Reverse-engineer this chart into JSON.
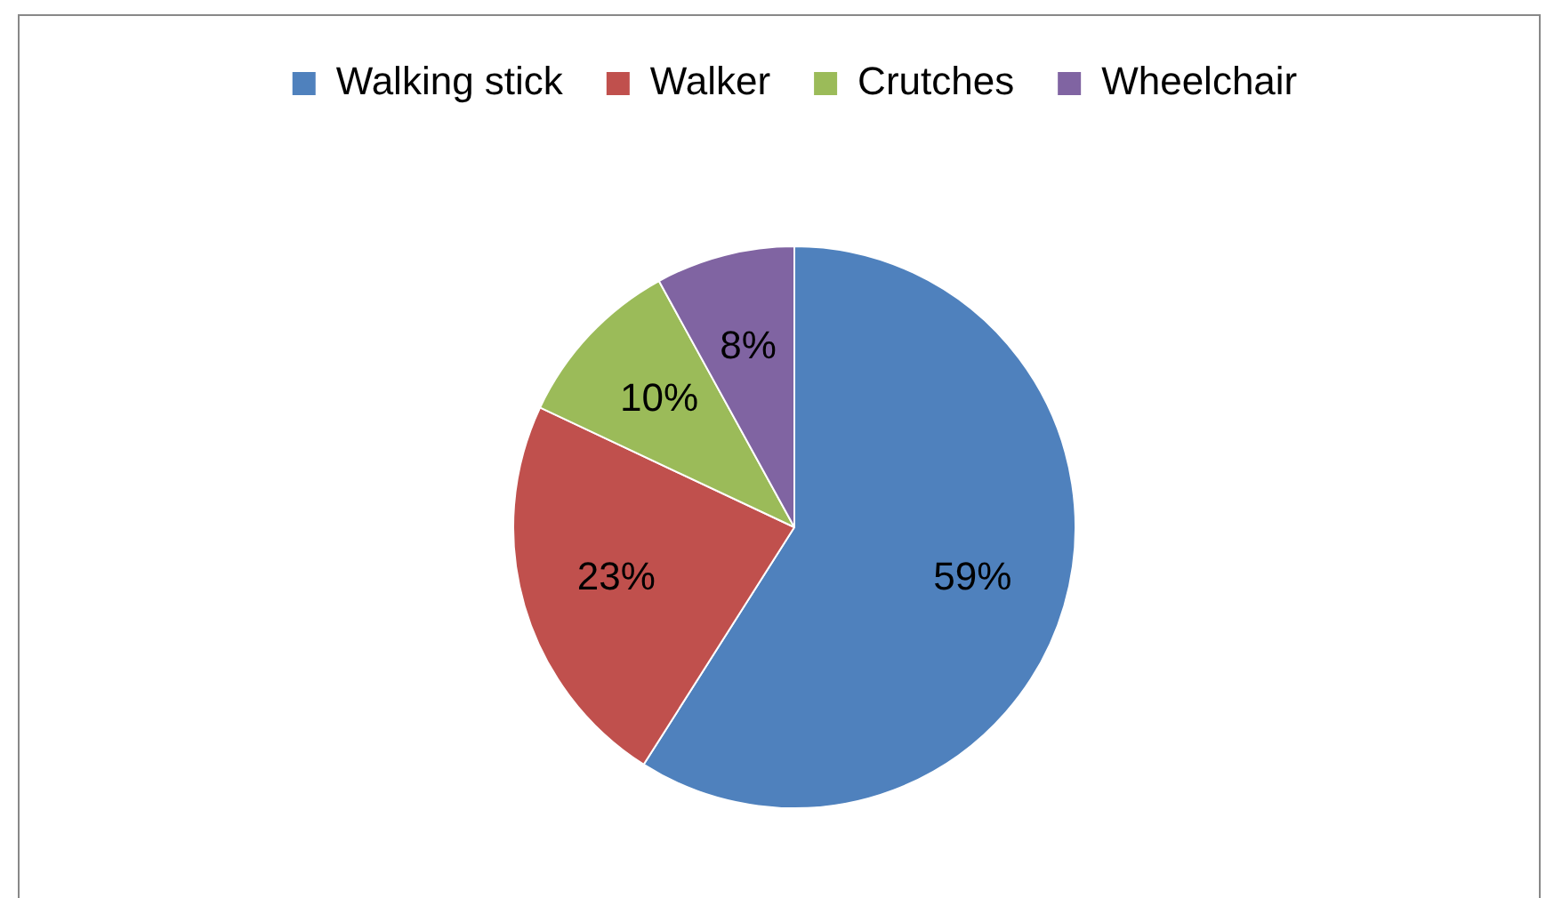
{
  "chart_data": {
    "type": "pie",
    "categories": [
      "Walking stick",
      "Walker",
      "Crutches",
      "Wheelchair"
    ],
    "values": [
      59,
      23,
      10,
      8
    ],
    "colors": [
      "#4f81bd",
      "#c0504d",
      "#9bbb59",
      "#8064a2"
    ],
    "value_labels": [
      "59%",
      "23%",
      "10%",
      "8%"
    ],
    "legend": "top"
  }
}
